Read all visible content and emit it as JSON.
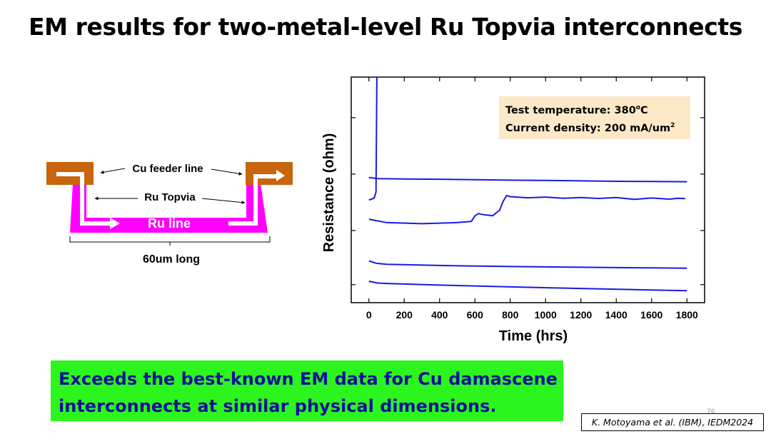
{
  "slide": {
    "title": "EM results for two-metal-level Ru Topvia interconnects",
    "page_number": "76"
  },
  "diagram": {
    "cu_feeder_label": "Cu feeder line",
    "ru_topvia_label": "Ru Topvia",
    "ru_line_label": "Ru line",
    "length_label": "60um long",
    "colors": {
      "copper": "#c8650d",
      "ru": "#ff00ff",
      "arrow": "#ffffff"
    }
  },
  "chart_data": {
    "type": "line",
    "xlabel": "Time (hrs)",
    "ylabel": "Resistance (ohm)",
    "xlim": [
      -100,
      1900
    ],
    "ylim": [
      0,
      100
    ],
    "xticks": [
      0,
      200,
      400,
      600,
      800,
      1000,
      1200,
      1400,
      1600,
      1800
    ],
    "yticks": [
      8,
      32,
      57,
      82
    ],
    "grid": false,
    "line_color": "#1a1ae6",
    "annotation": {
      "line1": "Test temperature: 380",
      "line1_sup": "o",
      "line1_end": "C",
      "line2": "Current density: 200 mA/um",
      "line2_sup": "2",
      "background": "#fde9c8",
      "placement": "top-right"
    },
    "series": [
      {
        "x": [
          0,
          20,
          30,
          40,
          45,
          47
        ],
        "y": [
          45.5,
          46,
          46.5,
          49,
          100,
          100
        ]
      },
      {
        "x": [
          0,
          50,
          200,
          400,
          600,
          800,
          1000,
          1200,
          1400,
          1600,
          1800
        ],
        "y": [
          55.5,
          55,
          54.8,
          54.7,
          54.5,
          54.3,
          54.2,
          54,
          53.8,
          53.7,
          53.6
        ]
      },
      {
        "x": [
          0,
          100,
          300,
          500,
          580,
          600,
          620,
          650,
          700,
          740,
          760,
          780,
          800,
          900,
          1000,
          1100,
          1200,
          1300,
          1400,
          1500,
          1600,
          1700,
          1750,
          1790
        ],
        "y": [
          37,
          35.5,
          35,
          35.5,
          36,
          38.5,
          39.5,
          39,
          38.5,
          41,
          45,
          47.5,
          47,
          46.5,
          46.8,
          46.3,
          46.6,
          46.2,
          46.6,
          45.8,
          46.4,
          45.9,
          46.3,
          46.1
        ]
      },
      {
        "x": [
          0,
          40,
          100,
          400,
          800,
          1200,
          1600,
          1800
        ],
        "y": [
          18.5,
          17.5,
          17,
          16.5,
          16,
          15.7,
          15.4,
          15.3
        ]
      },
      {
        "x": [
          0,
          50,
          100,
          400,
          800,
          1200,
          1600,
          1800
        ],
        "y": [
          9.5,
          8.7,
          8.5,
          7.8,
          7,
          6.3,
          5.6,
          5.3
        ]
      }
    ]
  },
  "callout": {
    "line1": "Exceeds the best-known EM data for Cu damascene",
    "line2": "interconnects at similar physical dimensions."
  },
  "citation": "K. Motoyama et al. (IBM), IEDM2024"
}
